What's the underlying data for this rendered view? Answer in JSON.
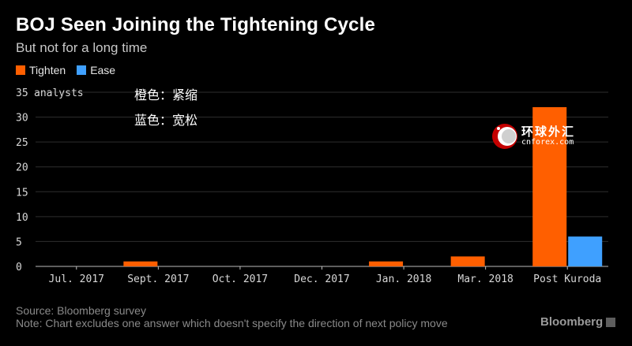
{
  "title": "BOJ Seen Joining the Tightening Cycle",
  "subtitle": "But not for a long time",
  "legend": {
    "tighten_label": "Tighten",
    "ease_label": "Ease"
  },
  "annotations": {
    "line1": "橙色：紧缩",
    "line2": "蓝色：宽松"
  },
  "watermark": {
    "cn": "环球外汇",
    "en": "cnforex.com"
  },
  "source": "Source: Bloomberg survey",
  "note": "Note: Chart excludes one answer which doesn't specify the direction of next policy move",
  "brand": "Bloomberg",
  "colors": {
    "tighten": "#ff5f00",
    "ease": "#3fa0ff",
    "grid": "#2e2e2e",
    "text": "#d8d8d8"
  },
  "chart_data": {
    "type": "bar",
    "title": "BOJ Seen Joining the Tightening Cycle",
    "subtitle": "But not for a long time",
    "ylabel": "analysts",
    "ylim": [
      0,
      35
    ],
    "yticks": [
      0,
      5,
      10,
      15,
      20,
      25,
      30,
      35
    ],
    "categories": [
      "Jul. 2017",
      "Sept. 2017",
      "Oct. 2017",
      "Dec. 2017",
      "Jan. 2018",
      "Mar. 2018",
      "Post Kuroda"
    ],
    "series": [
      {
        "name": "Tighten",
        "values": [
          0,
          1,
          0,
          0,
          1,
          2,
          32
        ]
      },
      {
        "name": "Ease",
        "values": [
          0,
          0,
          0,
          0,
          0,
          0,
          6
        ]
      }
    ],
    "grid": true,
    "legend_position": "top-left"
  }
}
